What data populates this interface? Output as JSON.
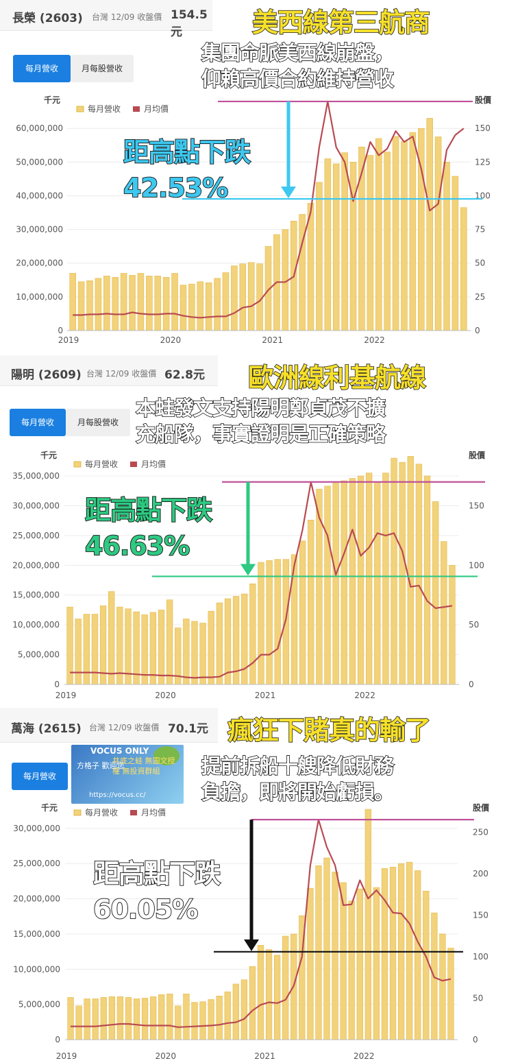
{
  "panels": [
    {
      "header": {
        "name": "長榮 (2603)",
        "market_label": "台灣 12/09 收盤價",
        "price": "154.5元"
      },
      "tabs": [
        {
          "label": "每月營收",
          "active": true
        },
        {
          "label": "月每股營收",
          "active": false
        }
      ],
      "headline": "美西線第三航商",
      "note": [
        "集團命脈美西線崩盤，",
        "仰賴高價合約維持營收"
      ],
      "drop": {
        "label": "距高點下跌",
        "value": "42.53%",
        "color": "#3ec8ef"
      },
      "peak_line_color": "#c0509a",
      "current_line_color": "#3ec8ef",
      "arrow_color": "#3ec8ef",
      "chart_data": {
        "type": "bar",
        "left_unit": "千元",
        "right_unit": "股價",
        "legend": [
          "每月營收",
          "月均價"
        ],
        "x_ticks": [
          "2019",
          "2020",
          "2021",
          "2022"
        ],
        "left_ticks": [
          "0",
          "10,000,000",
          "20,000,000",
          "30,000,000",
          "40,000,000",
          "50,000,000",
          "60,000,000"
        ],
        "right_ticks": [
          "0",
          "25",
          "50",
          "75",
          "100",
          "125",
          "150"
        ],
        "ylim_left": [
          0,
          69000000
        ],
        "ylim_right": [
          0,
          172.5
        ],
        "months": [
          "2019-01",
          "2019-02",
          "2019-03",
          "2019-04",
          "2019-05",
          "2019-06",
          "2019-07",
          "2019-08",
          "2019-09",
          "2019-10",
          "2019-11",
          "2019-12",
          "2020-01",
          "2020-02",
          "2020-03",
          "2020-04",
          "2020-05",
          "2020-06",
          "2020-07",
          "2020-08",
          "2020-09",
          "2020-10",
          "2020-11",
          "2020-12",
          "2021-01",
          "2021-02",
          "2021-03",
          "2021-04",
          "2021-05",
          "2021-06",
          "2021-07",
          "2021-08",
          "2021-09",
          "2021-10",
          "2021-11",
          "2021-12",
          "2022-01",
          "2022-02",
          "2022-03",
          "2022-04",
          "2022-05",
          "2022-06",
          "2022-07",
          "2022-08",
          "2022-09",
          "2022-10",
          "2022-11"
        ],
        "series": [
          {
            "name": "每月營收",
            "kind": "bar",
            "color": "#f2d27a",
            "values": [
              17000000,
              14500000,
              14800000,
              15500000,
              16200000,
              15800000,
              17000000,
              16400000,
              17000000,
              16200000,
              16200000,
              15800000,
              17000000,
              13500000,
              13800000,
              14500000,
              14200000,
              15500000,
              17200000,
              19200000,
              19800000,
              20200000,
              19800000,
              25000000,
              28500000,
              30000000,
              32500000,
              34500000,
              37800000,
              44000000,
              51000000,
              49500000,
              52800000,
              50000000,
              54500000,
              52000000,
              57000000,
              53000000,
              57600000,
              56200000,
              58800000,
              60000000,
              63000000,
              57500000,
              50000000,
              45800000,
              36500000
            ]
          },
          {
            "name": "月均價",
            "kind": "line",
            "color": "#b84a52",
            "values": [
              11.5,
              11.5,
              12,
              12,
              12.5,
              12,
              12,
              13.5,
              12.5,
              12,
              12,
              12.5,
              12.5,
              11,
              10,
              9.5,
              10,
              10.5,
              10.5,
              13,
              17,
              18,
              22,
              30,
              36,
              36,
              40,
              65,
              88,
              136,
              170,
              136,
              125,
              96,
              117,
              140,
              130,
              135,
              148,
              140,
              144,
              120,
              89,
              94,
              134,
              145,
              150
            ]
          }
        ]
      }
    },
    {
      "header": {
        "name": "陽明 (2609)",
        "market_label": "台灣 12/09 收盤價",
        "price": "62.8元"
      },
      "tabs": [
        {
          "label": "每月營收",
          "active": true
        },
        {
          "label": "月每股營收",
          "active": false
        }
      ],
      "headline": "歐洲線利基航線",
      "note": [
        "本蛙發文支持陽明鄭貞茂不擴",
        "充船隊，事實證明是正確策略"
      ],
      "drop": {
        "label": "距高點下跌",
        "value": "46.63%",
        "color": "#2ec982"
      },
      "peak_line_color": "#c0509a",
      "current_line_color": "#2ec982",
      "arrow_color": "#2ec982",
      "chart_data": {
        "type": "bar",
        "left_unit": "千元",
        "right_unit": "股價",
        "legend": [
          "每月營收",
          "月均價"
        ],
        "x_ticks": [
          "2019",
          "2020",
          "2021",
          "2022"
        ],
        "left_ticks": [
          "0",
          "5,000,000",
          "10,000,000",
          "15,000,000",
          "20,000,000",
          "25,000,000",
          "30,000,000",
          "35,000,000"
        ],
        "right_ticks": [
          "0",
          "50",
          "100",
          "150"
        ],
        "ylim_left": [
          0,
          38000000
        ],
        "ylim_right": [
          0,
          190
        ],
        "months": [
          "2019-01",
          "2019-02",
          "2019-03",
          "2019-04",
          "2019-05",
          "2019-06",
          "2019-07",
          "2019-08",
          "2019-09",
          "2019-10",
          "2019-11",
          "2019-12",
          "2020-01",
          "2020-02",
          "2020-03",
          "2020-04",
          "2020-05",
          "2020-06",
          "2020-07",
          "2020-08",
          "2020-09",
          "2020-10",
          "2020-11",
          "2020-12",
          "2021-01",
          "2021-02",
          "2021-03",
          "2021-04",
          "2021-05",
          "2021-06",
          "2021-07",
          "2021-08",
          "2021-09",
          "2021-10",
          "2021-11",
          "2021-12",
          "2022-01",
          "2022-02",
          "2022-03",
          "2022-04",
          "2022-05",
          "2022-06",
          "2022-07",
          "2022-08",
          "2022-09",
          "2022-10",
          "2022-11"
        ],
        "series": [
          {
            "name": "每月營收",
            "kind": "bar",
            "color": "#f2d27a",
            "values": [
              13000000,
              11000000,
              11800000,
              11800000,
              13200000,
              15600000,
              13000000,
              12700000,
              12200000,
              11700000,
              12100000,
              12500000,
              14200000,
              9500000,
              11000000,
              10600000,
              10300000,
              12300000,
              13700000,
              14400000,
              14800000,
              15200000,
              16900000,
              20500000,
              20800000,
              21000000,
              21000000,
              21800000,
              24100000,
              27600000,
              32800000,
              33300000,
              33800000,
              34200000,
              34600000,
              35000000,
              35500000,
              34000000,
              35500000,
              38000000,
              37300000,
              38300000,
              37000000,
              35000000,
              30700000,
              24000000,
              20000000
            ]
          },
          {
            "name": "月均價",
            "kind": "line",
            "color": "#b84a52",
            "values": [
              10,
              10,
              10,
              10,
              9.5,
              9,
              9.5,
              9,
              8.5,
              8,
              8,
              7.5,
              7.5,
              7,
              6,
              5.5,
              6,
              6,
              6.5,
              10,
              11,
              13,
              18,
              25,
              25,
              30,
              55,
              100,
              130,
              170,
              140,
              125,
              92,
              110,
              130,
              108,
              115,
              127,
              125,
              127,
              112,
              82,
              83,
              70,
              64,
              65,
              66
            ]
          }
        ]
      }
    },
    {
      "header": {
        "name": "萬海 (2615)",
        "market_label": "台灣 12/09 收盤價",
        "price": "70.1元"
      },
      "tabs": [
        {
          "label": "每月營收",
          "active": true
        }
      ],
      "headline": "瘋狂下賭真的輸了",
      "note": [
        "提前拆船十艘降低財務",
        "負擔，即將開始虧損。"
      ],
      "drop": {
        "label": "距高點下跌",
        "value": "60.05%",
        "color": "#ffffff"
      },
      "peak_line_color": "#c0509a",
      "current_line_color": "#111111",
      "arrow_color": "#111111",
      "watermark": {
        "line1": "VOCUS ONLY",
        "line2": "方格子 歡迎您",
        "line3": "井底之蛙 無圖文授權 無投資群組",
        "line4": "https://vocus.cc/"
      },
      "chart_data": {
        "type": "bar",
        "left_unit": "千元",
        "right_unit": "股價",
        "legend": [
          "每月營收",
          "月均價"
        ],
        "x_ticks": [
          "2019",
          "2020",
          "2021",
          "2022"
        ],
        "left_ticks": [
          "0",
          "5,000,000",
          "10,000,000",
          "15,000,000",
          "20,000,000",
          "25,000,000",
          "30,000,000"
        ],
        "right_ticks": [
          "0",
          "50",
          "100",
          "150",
          "200",
          "250"
        ],
        "ylim_left": [
          0,
          33000000
        ],
        "ylim_right": [
          0,
          280
        ],
        "months": [
          "2019-01",
          "2019-02",
          "2019-03",
          "2019-04",
          "2019-05",
          "2019-06",
          "2019-07",
          "2019-08",
          "2019-09",
          "2019-10",
          "2019-11",
          "2019-12",
          "2020-01",
          "2020-02",
          "2020-03",
          "2020-04",
          "2020-05",
          "2020-06",
          "2020-07",
          "2020-08",
          "2020-09",
          "2020-10",
          "2020-11",
          "2020-12",
          "2021-01",
          "2021-02",
          "2021-03",
          "2021-04",
          "2021-05",
          "2021-06",
          "2021-07",
          "2021-08",
          "2021-09",
          "2021-10",
          "2021-11",
          "2021-12",
          "2022-01",
          "2022-02",
          "2022-03",
          "2022-04",
          "2022-05",
          "2022-06",
          "2022-07",
          "2022-08",
          "2022-09",
          "2022-10",
          "2022-11"
        ],
        "series": [
          {
            "name": "每月營收",
            "kind": "bar",
            "color": "#f2d27a",
            "values": [
              6000000,
              4800000,
              5800000,
              5800000,
              6000000,
              6100000,
              6100000,
              6000000,
              5800000,
              5900000,
              6100000,
              6400000,
              6500000,
              4800000,
              6500000,
              5300000,
              5400000,
              5700000,
              6200000,
              6800000,
              7900000,
              8500000,
              10400000,
              13400000,
              12800000,
              12000000,
              14700000,
              15000000,
              17600000,
              21500000,
              24700000,
              25800000,
              23800000,
              22300000,
              19700000,
              21400000,
              32700000,
              21600000,
              24300000,
              24500000,
              25000000,
              25200000,
              24000000,
              21100000,
              18000000,
              15000000,
              13000000
            ]
          },
          {
            "name": "月均價",
            "kind": "line",
            "color": "#b84a52",
            "values": [
              16,
              16,
              16,
              16,
              17,
              18,
              19,
              19,
              18,
              17,
              17,
              17,
              17,
              15,
              15.5,
              16,
              16.5,
              17,
              18,
              20,
              21,
              25,
              35,
              42,
              45,
              44,
              48,
              65,
              100,
              210,
              265,
              232,
              210,
              162,
              163,
              192,
              170,
              180,
              168,
              153,
              152,
              140,
              118,
              100,
              75,
              71,
              73
            ]
          }
        ]
      }
    }
  ]
}
